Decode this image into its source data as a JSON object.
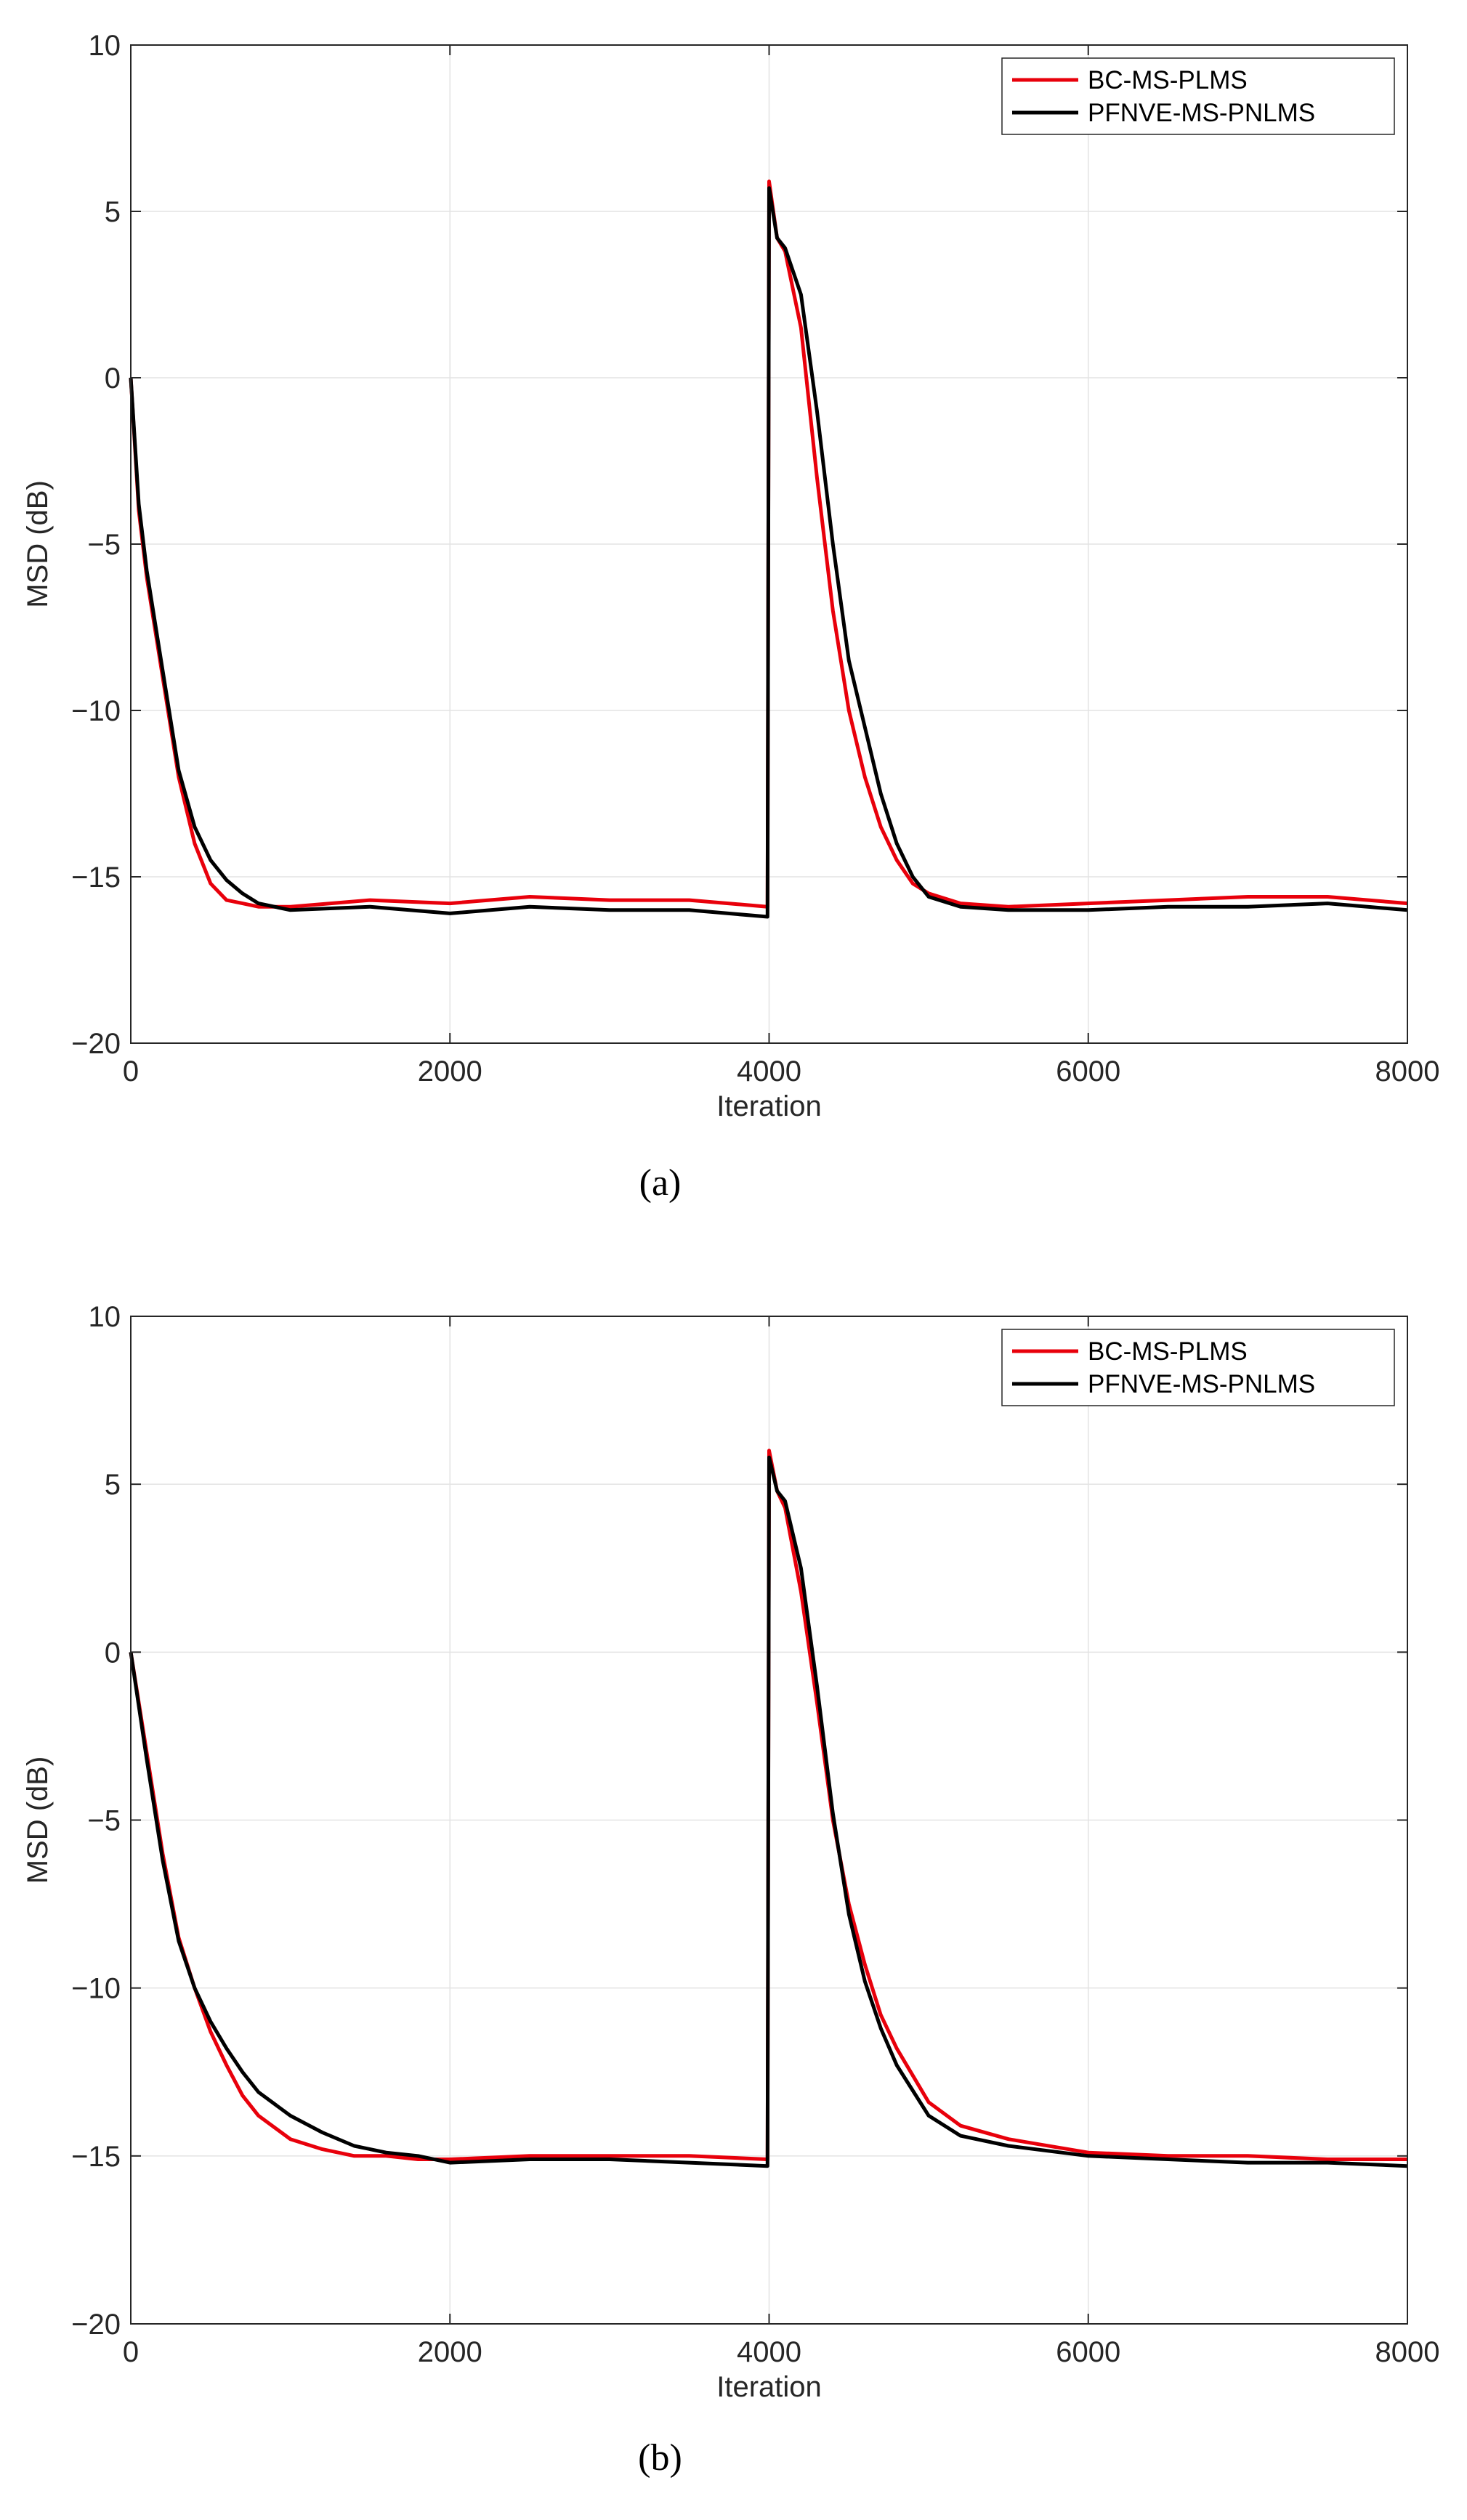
{
  "chart_data": [
    {
      "type": "line",
      "caption": "(a)",
      "xlabel": "Iteration",
      "ylabel": "MSD (dB)",
      "xlim": [
        0,
        8000
      ],
      "ylim": [
        -20,
        10
      ],
      "xticks": [
        "0",
        "2000",
        "4000",
        "6000",
        "8000"
      ],
      "yticks": [
        "−20",
        "−15",
        "−10",
        "−5",
        "0",
        "5",
        "10"
      ],
      "grid": true,
      "legend_position": "top-right",
      "colors": {
        "BC-MS-PLMS": "#e8000b",
        "PFNVE-MS-PNLMS": "#000000"
      },
      "series": [
        {
          "name": "BC-MS-PLMS",
          "x": [
            0,
            50,
            100,
            200,
            300,
            400,
            500,
            600,
            700,
            800,
            1000,
            1500,
            2000,
            2500,
            3000,
            3500,
            3990,
            4000,
            4050,
            4100,
            4200,
            4300,
            4400,
            4500,
            4600,
            4700,
            4800,
            4900,
            5000,
            5200,
            5500,
            6000,
            6500,
            7000,
            7500,
            8000
          ],
          "y": [
            0,
            -4,
            -6,
            -9,
            -12,
            -14,
            -15.2,
            -15.7,
            -15.8,
            -15.9,
            -15.9,
            -15.7,
            -15.8,
            -15.6,
            -15.7,
            -15.7,
            -15.9,
            5.9,
            4.2,
            3.8,
            1.5,
            -3,
            -7,
            -10,
            -12,
            -13.5,
            -14.5,
            -15.2,
            -15.5,
            -15.8,
            -15.9,
            -15.8,
            -15.7,
            -15.6,
            -15.6,
            -15.8
          ]
        },
        {
          "name": "PFNVE-MS-PNLMS",
          "x": [
            0,
            50,
            100,
            200,
            300,
            400,
            500,
            600,
            700,
            800,
            1000,
            1500,
            2000,
            2500,
            3000,
            3500,
            3990,
            4000,
            4050,
            4100,
            4200,
            4300,
            4400,
            4500,
            4600,
            4700,
            4800,
            4900,
            5000,
            5200,
            5500,
            6000,
            6500,
            7000,
            7500,
            8000
          ],
          "y": [
            0,
            -3.8,
            -5.8,
            -8.8,
            -11.8,
            -13.5,
            -14.5,
            -15.1,
            -15.5,
            -15.8,
            -16,
            -15.9,
            -16.1,
            -15.9,
            -16,
            -16,
            -16.2,
            5.7,
            4.2,
            3.9,
            2.5,
            -1,
            -5,
            -8.5,
            -10.5,
            -12.5,
            -14,
            -15,
            -15.6,
            -15.9,
            -16,
            -16,
            -15.9,
            -15.9,
            -15.8,
            -16
          ]
        }
      ]
    },
    {
      "type": "line",
      "caption": "(b)",
      "xlabel": "Iteration",
      "ylabel": "MSD (dB)",
      "xlim": [
        0,
        8000
      ],
      "ylim": [
        -20,
        10
      ],
      "xticks": [
        "0",
        "2000",
        "4000",
        "6000",
        "8000"
      ],
      "yticks": [
        "−20",
        "−15",
        "−10",
        "−5",
        "0",
        "5",
        "10"
      ],
      "grid": true,
      "legend_position": "top-right",
      "colors": {
        "BC-MS-PLMS": "#e8000b",
        "PFNVE-MS-PNLMS": "#000000"
      },
      "series": [
        {
          "name": "BC-MS-PLMS",
          "x": [
            0,
            100,
            200,
            300,
            400,
            500,
            600,
            700,
            800,
            1000,
            1200,
            1400,
            1600,
            1800,
            2000,
            2500,
            3000,
            3500,
            3990,
            4000,
            4050,
            4100,
            4200,
            4300,
            4400,
            4500,
            4600,
            4700,
            4800,
            5000,
            5200,
            5500,
            6000,
            6500,
            7000,
            7500,
            8000
          ],
          "y": [
            0,
            -3,
            -6,
            -8.5,
            -10,
            -11.3,
            -12.3,
            -13.2,
            -13.8,
            -14.5,
            -14.8,
            -15,
            -15,
            -15.1,
            -15.1,
            -15,
            -15,
            -15,
            -15.1,
            6,
            4.8,
            4.3,
            1.8,
            -1.5,
            -5,
            -7.5,
            -9.3,
            -10.8,
            -11.8,
            -13.4,
            -14.1,
            -14.5,
            -14.9,
            -15,
            -15,
            -15.1,
            -15.1
          ]
        },
        {
          "name": "PFNVE-MS-PNLMS",
          "x": [
            0,
            100,
            200,
            300,
            400,
            500,
            600,
            700,
            800,
            1000,
            1200,
            1400,
            1600,
            1800,
            2000,
            2500,
            3000,
            3500,
            3990,
            4000,
            4050,
            4100,
            4200,
            4300,
            4400,
            4500,
            4600,
            4700,
            4800,
            5000,
            5200,
            5500,
            6000,
            6500,
            7000,
            7500,
            8000
          ],
          "y": [
            0,
            -3.2,
            -6.2,
            -8.6,
            -10,
            -11,
            -11.8,
            -12.5,
            -13.1,
            -13.8,
            -14.3,
            -14.7,
            -14.9,
            -15,
            -15.2,
            -15.1,
            -15.1,
            -15.2,
            -15.3,
            5.8,
            4.8,
            4.5,
            2.5,
            -1,
            -4.8,
            -7.8,
            -9.8,
            -11.2,
            -12.3,
            -13.8,
            -14.4,
            -14.7,
            -15,
            -15.1,
            -15.2,
            -15.2,
            -15.3
          ]
        }
      ]
    }
  ]
}
